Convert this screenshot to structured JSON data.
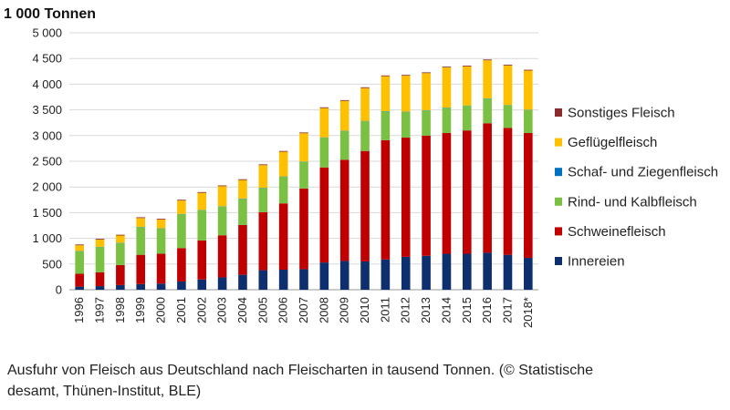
{
  "chart_data": {
    "type": "bar",
    "stacked": true,
    "unit_label": "1 000 Tonnen",
    "categories": [
      "1996",
      "1997",
      "1998",
      "1999",
      "2000",
      "2001",
      "2002",
      "2003",
      "2004",
      "2005",
      "2006",
      "2007",
      "2008",
      "2009",
      "2010",
      "2011",
      "2012",
      "2013",
      "2014",
      "2015",
      "2016",
      "2017",
      "2018*"
    ],
    "ylim": [
      0,
      5000
    ],
    "yticks": [
      "0",
      "500",
      "1 000",
      "1 500",
      "2 000",
      "2 500",
      "3 000",
      "3 500",
      "4 000",
      "4 500",
      "5 000"
    ],
    "ytick_values": [
      0,
      500,
      1000,
      1500,
      2000,
      2500,
      3000,
      3500,
      4000,
      4500,
      5000
    ],
    "grid": true,
    "legend_position": "right",
    "series": [
      {
        "name": "Innereien",
        "color": "#0d2f6e",
        "values": [
          60,
          70,
          90,
          110,
          120,
          160,
          200,
          240,
          290,
          380,
          390,
          400,
          530,
          560,
          550,
          590,
          640,
          660,
          700,
          700,
          720,
          680,
          620
        ]
      },
      {
        "name": "Schweinefleisch",
        "color": "#c00000",
        "values": [
          250,
          270,
          390,
          570,
          580,
          650,
          760,
          820,
          970,
          1130,
          1290,
          1570,
          1850,
          1970,
          2150,
          2320,
          2320,
          2340,
          2350,
          2400,
          2520,
          2470,
          2430
        ]
      },
      {
        "name": "Rind- und Kalbfleisch",
        "color": "#7ac143",
        "values": [
          440,
          490,
          430,
          540,
          490,
          660,
          590,
          560,
          510,
          470,
          520,
          520,
          580,
          560,
          580,
          560,
          500,
          490,
          490,
          480,
          480,
          440,
          450
        ]
      },
      {
        "name": "Schaf- und Ziegenfleisch",
        "color": "#0070c0",
        "values": [
          5,
          5,
          5,
          5,
          5,
          5,
          5,
          5,
          5,
          5,
          5,
          5,
          5,
          5,
          5,
          5,
          5,
          5,
          5,
          5,
          5,
          5,
          5
        ]
      },
      {
        "name": "Geflügelfleisch",
        "color": "#ffc000",
        "values": [
          110,
          140,
          140,
          170,
          170,
          260,
          330,
          390,
          360,
          440,
          480,
          550,
          570,
          580,
          640,
          680,
          700,
          720,
          780,
          760,
          740,
          770,
          760
        ]
      },
      {
        "name": "Sonstiges Fleisch",
        "color": "#8b2b2b",
        "values": [
          15,
          15,
          15,
          15,
          15,
          15,
          15,
          15,
          15,
          15,
          15,
          15,
          15,
          15,
          15,
          15,
          15,
          15,
          15,
          15,
          15,
          15,
          15
        ]
      }
    ],
    "legend_order": [
      "Sonstiges Fleisch",
      "Geflügelfleisch",
      "Schaf- und Ziegenfleisch",
      "Rind- und Kalbfleisch",
      "Schweinefleisch",
      "Innereien"
    ]
  },
  "caption": {
    "line1": "Ausfuhr von Fleisch aus Deutschland nach Fleischarten in tausend Tonnen. (© Statistische",
    "line2": "desamt, Thünen-Institut, BLE)"
  }
}
